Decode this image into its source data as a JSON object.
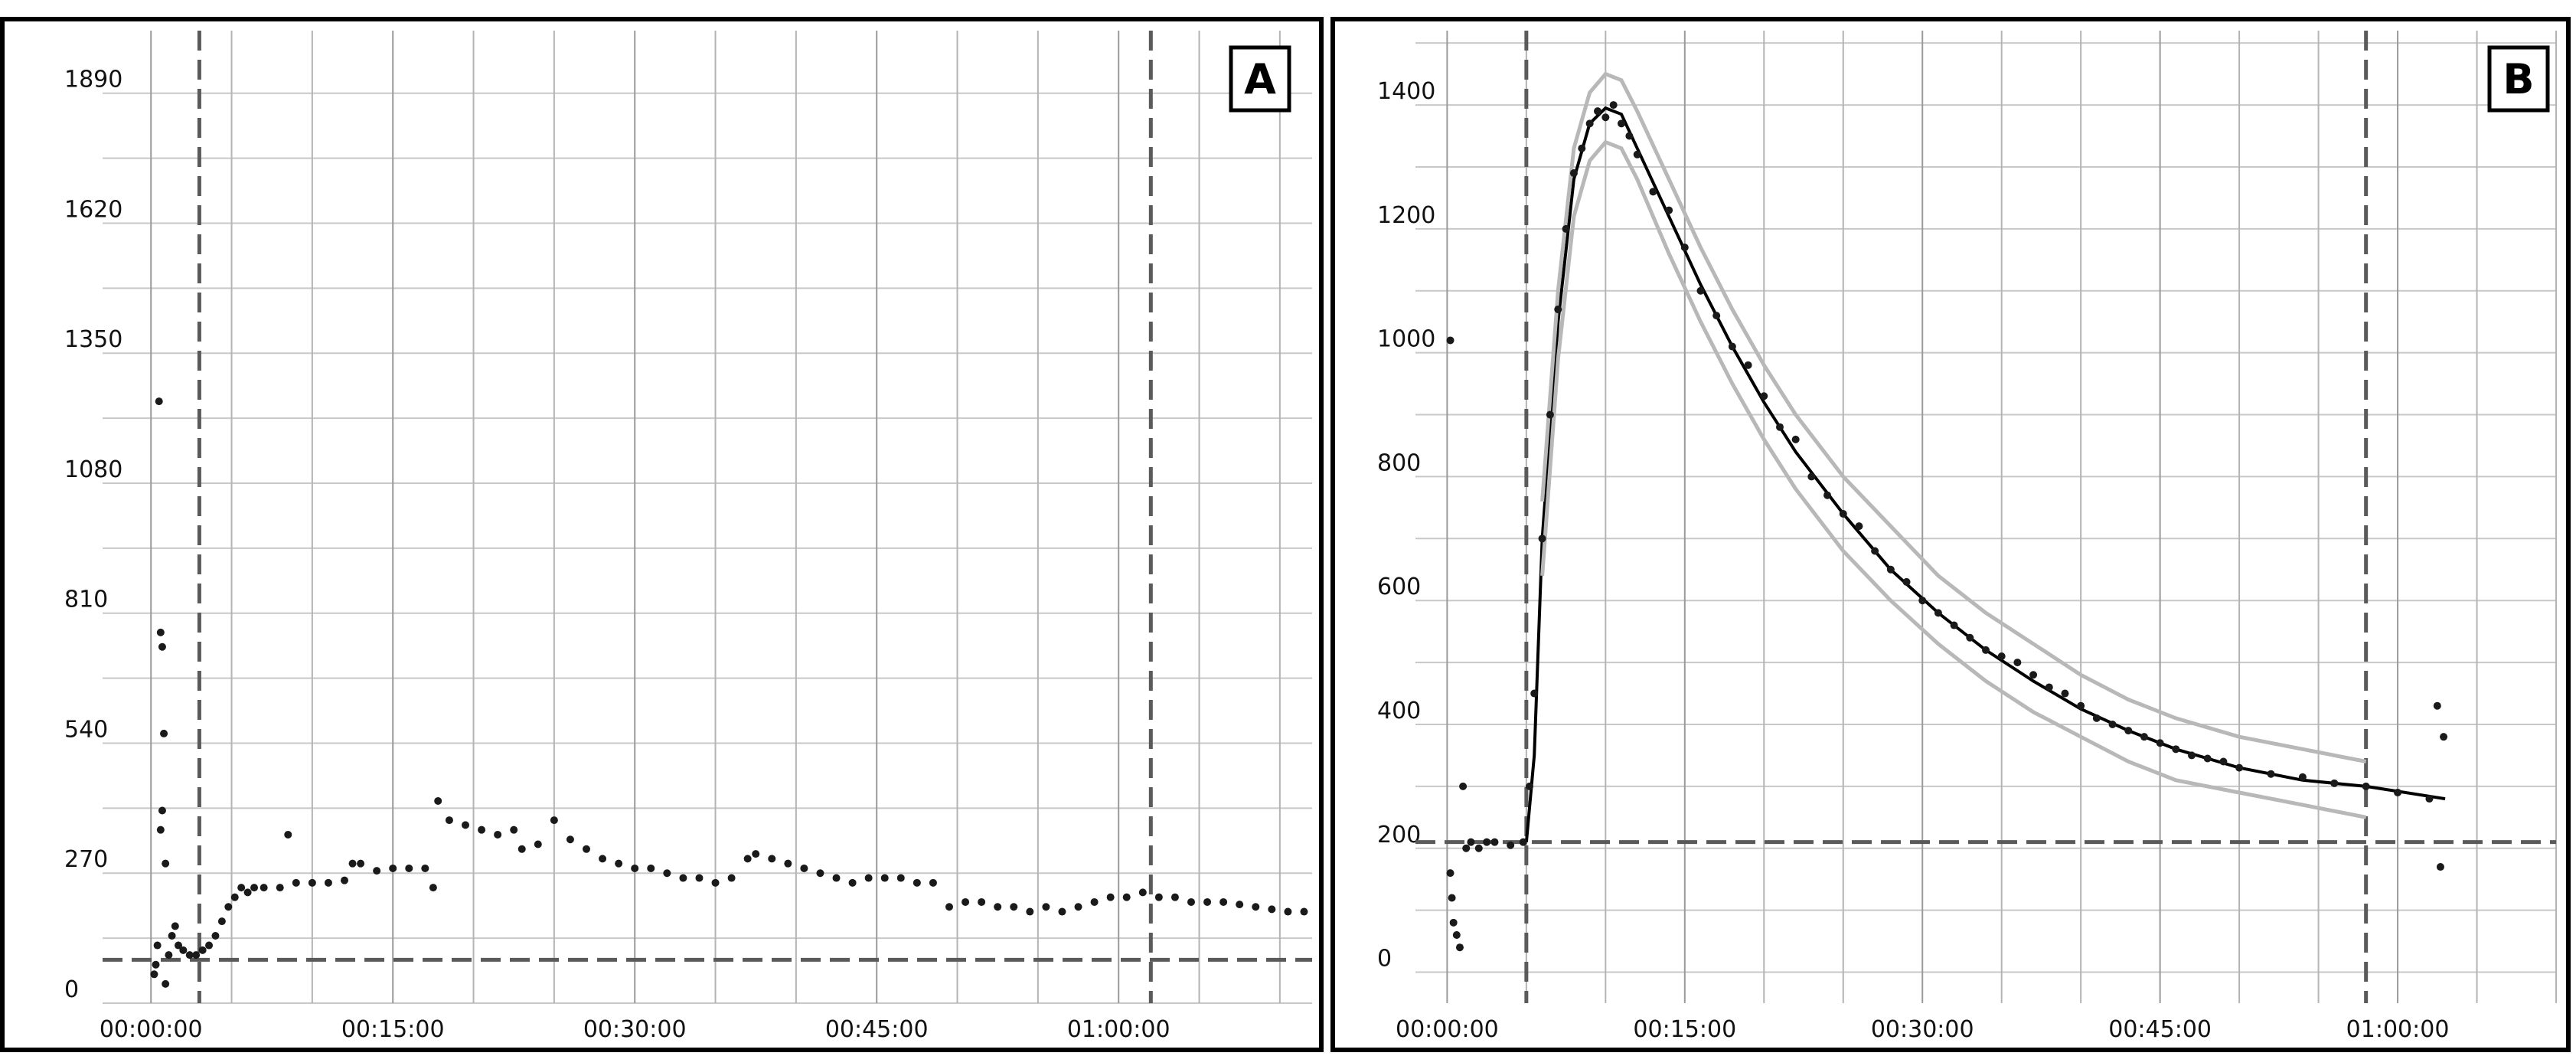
{
  "chart_data": [
    {
      "type": "scatter",
      "panel_label": "A",
      "x_unit": "time (hh:mm:ss)",
      "x_ticks": [
        "00:00:00",
        "00:15:00",
        "00:30:00",
        "00:45:00",
        "01:00:00"
      ],
      "y_ticks": [
        "0",
        "270",
        "540",
        "810",
        "1080",
        "1350",
        "1620",
        "1890"
      ],
      "xlim_minutes": [
        -3,
        72
      ],
      "ylim": [
        0,
        2020
      ],
      "grid": true,
      "baseline_y": 90,
      "vertical_markers_minutes": [
        3,
        62
      ],
      "series": [
        {
          "points": [
            [
              0.2,
              60
            ],
            [
              0.3,
              80
            ],
            [
              0.4,
              120
            ],
            [
              0.5,
              1250
            ],
            [
              0.6,
              770
            ],
            [
              0.7,
              740
            ],
            [
              0.8,
              560
            ],
            [
              0.6,
              360
            ],
            [
              0.7,
              400
            ],
            [
              0.9,
              290
            ],
            [
              0.9,
              40
            ],
            [
              1.1,
              100
            ],
            [
              1.3,
              140
            ],
            [
              1.5,
              160
            ],
            [
              1.7,
              120
            ],
            [
              2.0,
              110
            ],
            [
              2.4,
              100
            ],
            [
              2.8,
              100
            ],
            [
              3.2,
              110
            ],
            [
              3.6,
              120
            ],
            [
              4.0,
              140
            ],
            [
              4.4,
              170
            ],
            [
              4.8,
              200
            ],
            [
              5.2,
              220
            ],
            [
              5.6,
              240
            ],
            [
              6.0,
              230
            ],
            [
              6.4,
              240
            ],
            [
              7.0,
              240
            ],
            [
              8.0,
              240
            ],
            [
              9.0,
              250
            ],
            [
              10.0,
              250
            ],
            [
              11.0,
              250
            ],
            [
              12.0,
              255
            ],
            [
              8.5,
              350
            ],
            [
              12.5,
              290
            ],
            [
              13.0,
              290
            ],
            [
              14.0,
              275
            ],
            [
              15.0,
              280
            ],
            [
              16.0,
              280
            ],
            [
              17.0,
              280
            ],
            [
              17.5,
              240
            ],
            [
              17.8,
              420
            ],
            [
              18.5,
              380
            ],
            [
              19.5,
              370
            ],
            [
              20.5,
              360
            ],
            [
              21.5,
              350
            ],
            [
              22.5,
              360
            ],
            [
              23.0,
              320
            ],
            [
              24.0,
              330
            ],
            [
              25.0,
              380
            ],
            [
              26.0,
              340
            ],
            [
              27.0,
              320
            ],
            [
              28.0,
              300
            ],
            [
              29.0,
              290
            ],
            [
              30.0,
              280
            ],
            [
              31.0,
              280
            ],
            [
              32.0,
              270
            ],
            [
              33.0,
              260
            ],
            [
              34.0,
              260
            ],
            [
              35.0,
              250
            ],
            [
              36.0,
              260
            ],
            [
              37.0,
              300
            ],
            [
              37.5,
              310
            ],
            [
              38.5,
              300
            ],
            [
              39.5,
              290
            ],
            [
              40.5,
              280
            ],
            [
              41.5,
              270
            ],
            [
              42.5,
              260
            ],
            [
              43.5,
              250
            ],
            [
              44.5,
              260
            ],
            [
              45.5,
              260
            ],
            [
              46.5,
              260
            ],
            [
              47.5,
              250
            ],
            [
              48.5,
              250
            ],
            [
              49.5,
              200
            ],
            [
              50.5,
              210
            ],
            [
              51.5,
              210
            ],
            [
              52.5,
              200
            ],
            [
              53.5,
              200
            ],
            [
              54.5,
              190
            ],
            [
              55.5,
              200
            ],
            [
              56.5,
              190
            ],
            [
              57.5,
              200
            ],
            [
              58.5,
              210
            ],
            [
              59.5,
              220
            ],
            [
              60.5,
              220
            ],
            [
              61.5,
              230
            ],
            [
              62.5,
              220
            ],
            [
              63.5,
              220
            ],
            [
              64.5,
              210
            ],
            [
              65.5,
              210
            ],
            [
              66.5,
              210
            ],
            [
              67.5,
              205
            ],
            [
              68.5,
              200
            ],
            [
              69.5,
              195
            ],
            [
              70.5,
              190
            ],
            [
              71.5,
              190
            ]
          ]
        }
      ]
    },
    {
      "type": "scatter",
      "panel_label": "B",
      "x_unit": "time (hh:mm:ss)",
      "x_ticks": [
        "00:00:00",
        "00:15:00",
        "00:30:00",
        "00:45:00",
        "01:00:00"
      ],
      "y_ticks": [
        "0",
        "200",
        "400",
        "600",
        "800",
        "1000",
        "1200",
        "1400"
      ],
      "xlim_minutes": [
        -2,
        70
      ],
      "ylim": [
        -50,
        1520
      ],
      "grid": true,
      "baseline_y": 210,
      "vertical_markers_minutes": [
        5,
        58
      ],
      "series": [
        {
          "name": "fit",
          "line": [
            [
              5,
              210
            ],
            [
              5.5,
              350
            ],
            [
              6,
              700
            ],
            [
              7,
              1050
            ],
            [
              8,
              1280
            ],
            [
              9,
              1370
            ],
            [
              10,
              1395
            ],
            [
              11,
              1385
            ],
            [
              12,
              1330
            ],
            [
              14,
              1220
            ],
            [
              16,
              1110
            ],
            [
              18,
              1010
            ],
            [
              20,
              920
            ],
            [
              22,
              840
            ],
            [
              25,
              740
            ],
            [
              28,
              650
            ],
            [
              31,
              580
            ],
            [
              34,
              520
            ],
            [
              37,
              470
            ],
            [
              40,
              425
            ],
            [
              43,
              390
            ],
            [
              46,
              360
            ],
            [
              50,
              330
            ],
            [
              54,
              310
            ],
            [
              58,
              300
            ],
            [
              63,
              280
            ]
          ]
        },
        {
          "name": "upper-band",
          "line": [
            [
              6,
              760
            ],
            [
              7,
              1100
            ],
            [
              8,
              1330
            ],
            [
              9,
              1420
            ],
            [
              10,
              1450
            ],
            [
              11,
              1440
            ],
            [
              12,
              1390
            ],
            [
              14,
              1280
            ],
            [
              16,
              1170
            ],
            [
              18,
              1070
            ],
            [
              20,
              980
            ],
            [
              22,
              900
            ],
            [
              25,
              800
            ],
            [
              28,
              720
            ],
            [
              31,
              640
            ],
            [
              34,
              580
            ],
            [
              37,
              530
            ],
            [
              40,
              480
            ],
            [
              43,
              440
            ],
            [
              46,
              410
            ],
            [
              50,
              380
            ],
            [
              54,
              360
            ],
            [
              58,
              340
            ]
          ]
        },
        {
          "name": "lower-band",
          "line": [
            [
              6,
              640
            ],
            [
              7,
              990
            ],
            [
              8,
              1220
            ],
            [
              9,
              1310
            ],
            [
              10,
              1340
            ],
            [
              11,
              1330
            ],
            [
              12,
              1280
            ],
            [
              14,
              1160
            ],
            [
              16,
              1050
            ],
            [
              18,
              950
            ],
            [
              20,
              860
            ],
            [
              22,
              780
            ],
            [
              25,
              680
            ],
            [
              28,
              600
            ],
            [
              31,
              530
            ],
            [
              34,
              470
            ],
            [
              37,
              420
            ],
            [
              40,
              380
            ],
            [
              43,
              340
            ],
            [
              46,
              310
            ],
            [
              50,
              290
            ],
            [
              54,
              270
            ],
            [
              58,
              250
            ]
          ]
        },
        {
          "name": "points",
          "points": [
            [
              0.2,
              1020
            ],
            [
              0.2,
              160
            ],
            [
              0.3,
              120
            ],
            [
              0.4,
              80
            ],
            [
              0.6,
              60
            ],
            [
              0.8,
              40
            ],
            [
              1.0,
              300
            ],
            [
              1.2,
              200
            ],
            [
              1.5,
              210
            ],
            [
              2,
              200
            ],
            [
              2.5,
              210
            ],
            [
              3,
              210
            ],
            [
              4,
              205
            ],
            [
              4.8,
              210
            ],
            [
              5.2,
              300
            ],
            [
              5.5,
              450
            ],
            [
              6,
              700
            ],
            [
              6.5,
              900
            ],
            [
              7,
              1070
            ],
            [
              7.5,
              1200
            ],
            [
              8,
              1290
            ],
            [
              8.5,
              1330
            ],
            [
              9,
              1370
            ],
            [
              9.5,
              1390
            ],
            [
              10,
              1380
            ],
            [
              10.5,
              1400
            ],
            [
              11,
              1370
            ],
            [
              11.5,
              1350
            ],
            [
              12,
              1320
            ],
            [
              13,
              1260
            ],
            [
              14,
              1230
            ],
            [
              15,
              1170
            ],
            [
              16,
              1100
            ],
            [
              17,
              1060
            ],
            [
              18,
              1010
            ],
            [
              19,
              980
            ],
            [
              20,
              930
            ],
            [
              21,
              880
            ],
            [
              22,
              860
            ],
            [
              23,
              800
            ],
            [
              24,
              770
            ],
            [
              25,
              740
            ],
            [
              26,
              720
            ],
            [
              27,
              680
            ],
            [
              28,
              650
            ],
            [
              29,
              630
            ],
            [
              30,
              600
            ],
            [
              31,
              580
            ],
            [
              32,
              560
            ],
            [
              33,
              540
            ],
            [
              34,
              520
            ],
            [
              35,
              510
            ],
            [
              36,
              500
            ],
            [
              37,
              480
            ],
            [
              38,
              460
            ],
            [
              39,
              450
            ],
            [
              40,
              430
            ],
            [
              41,
              410
            ],
            [
              42,
              400
            ],
            [
              43,
              390
            ],
            [
              44,
              380
            ],
            [
              45,
              370
            ],
            [
              46,
              360
            ],
            [
              47,
              350
            ],
            [
              48,
              345
            ],
            [
              49,
              340
            ],
            [
              50,
              330
            ],
            [
              52,
              320
            ],
            [
              54,
              315
            ],
            [
              56,
              305
            ],
            [
              58,
              300
            ],
            [
              60,
              290
            ],
            [
              62,
              280
            ],
            [
              62.5,
              430
            ],
            [
              62.7,
              170
            ],
            [
              62.9,
              380
            ]
          ]
        }
      ]
    }
  ]
}
